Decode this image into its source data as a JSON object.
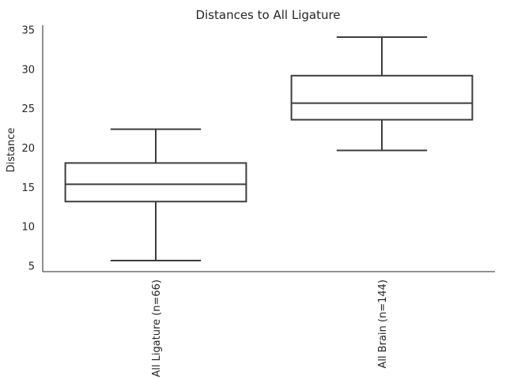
{
  "chart_data": {
    "type": "box",
    "title": "Distances to All Ligature",
    "xlabel": "",
    "ylabel": "Distance",
    "ylim": [
      4.3,
      35.6
    ],
    "yticks": [
      5,
      10,
      15,
      20,
      25,
      30,
      35
    ],
    "categories": [
      "All Ligature (n=66)",
      "All Brain (n=144)"
    ],
    "boxes": [
      {
        "label": "All Ligature (n=66)",
        "whisker_low": 5.7,
        "q1": 13.2,
        "median": 15.4,
        "q3": 18.1,
        "whisker_high": 22.4
      },
      {
        "label": "All Brain (n=144)",
        "whisker_low": 19.7,
        "q1": 23.6,
        "median": 25.7,
        "q3": 29.2,
        "whisker_high": 34.1
      }
    ],
    "grid": false,
    "style": {
      "box_color": "#3d3d3d",
      "text_color": "#262626",
      "background": "#ffffff"
    }
  }
}
